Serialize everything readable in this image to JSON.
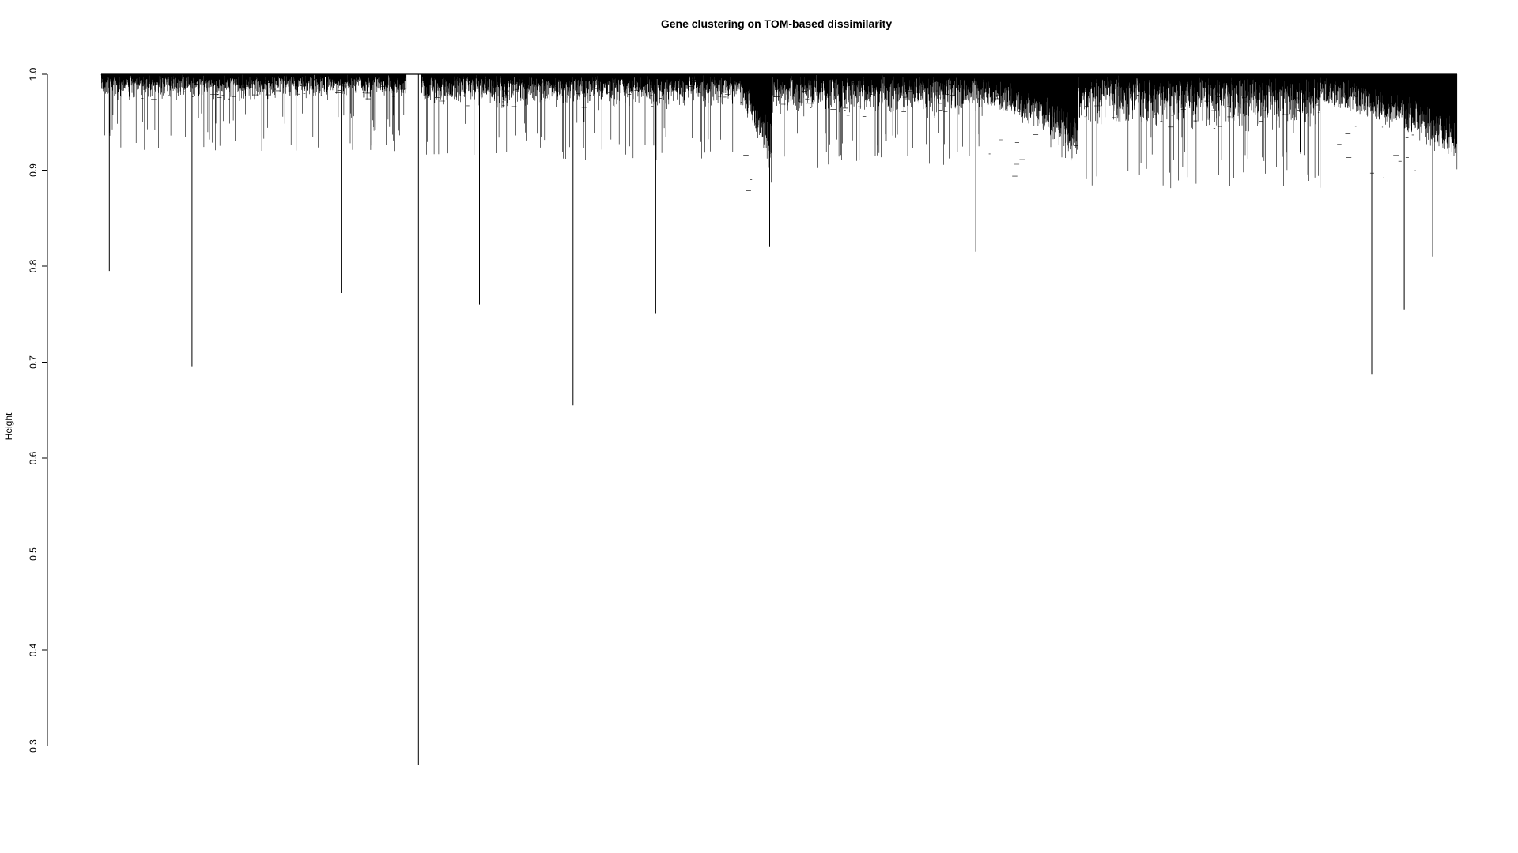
{
  "chart_data": {
    "type": "dendrogram",
    "title": "Gene clustering on TOM-based dissimilarity",
    "xlabel": "",
    "ylabel": "Height",
    "ylim": [
      0.28,
      1.0
    ],
    "yticks": [
      "0.3",
      "0.4",
      "0.5",
      "0.6",
      "0.7",
      "0.8",
      "0.9",
      "1.0"
    ],
    "root_height": 1.0,
    "leaf_range": [
      0,
      1000
    ],
    "grid": false,
    "legend": "none",
    "colors": {
      "line": "#000000",
      "background": "#ffffff"
    },
    "notable_branch_minima": [
      {
        "x": 6,
        "y": 0.795
      },
      {
        "x": 67,
        "y": 0.695
      },
      {
        "x": 177,
        "y": 0.772
      },
      {
        "x": 234,
        "y": 0.28
      },
      {
        "x": 279,
        "y": 0.76
      },
      {
        "x": 348,
        "y": 0.655
      },
      {
        "x": 409,
        "y": 0.751
      },
      {
        "x": 493,
        "y": 0.82
      },
      {
        "x": 645,
        "y": 0.815
      },
      {
        "x": 937,
        "y": 0.687
      },
      {
        "x": 961,
        "y": 0.755
      },
      {
        "x": 982,
        "y": 0.81
      }
    ],
    "clusters": [
      {
        "start": 0,
        "end": 225,
        "floor": 0.97,
        "dense": true
      },
      {
        "start": 236,
        "end": 470,
        "floor": 0.96,
        "dense": true
      },
      {
        "start": 470,
        "end": 495,
        "floor": 0.85,
        "dense": false
      },
      {
        "start": 495,
        "end": 650,
        "floor": 0.95,
        "dense": true
      },
      {
        "start": 650,
        "end": 720,
        "floor": 0.88,
        "dense": false
      },
      {
        "start": 720,
        "end": 900,
        "floor": 0.93,
        "dense": true
      },
      {
        "start": 900,
        "end": 1000,
        "floor": 0.88,
        "dense": false
      }
    ]
  }
}
